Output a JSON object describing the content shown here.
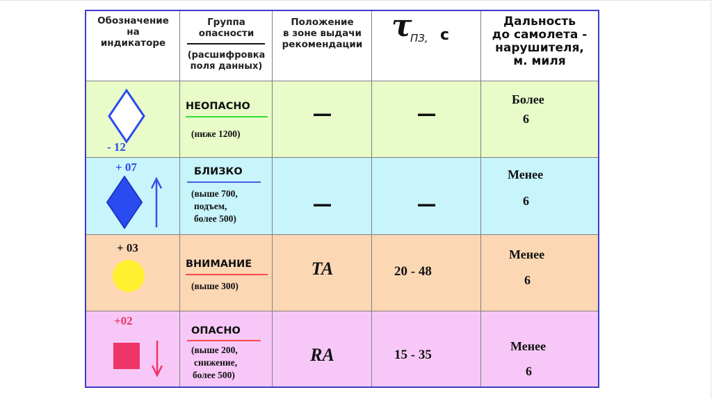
{
  "colors": {
    "border": "#3c3ccc",
    "row_not_dangerous": "#e8fbc8",
    "row_close": "#c8f4fb",
    "row_attention": "#fcd7b4",
    "row_danger": "#f7c8f7",
    "green_line": "#33dd33",
    "blue_line": "#4a5de0",
    "red_line": "#ff4a4a",
    "yellow_circle": "#ffef2e",
    "blue_symbol": "#2a4bef",
    "red_square": "#ef3568",
    "blue_arrow": "#3b4fe0"
  },
  "headers": {
    "indicator": [
      "Обозначение",
      "на",
      "индикаторе"
    ],
    "group": [
      "Группа",
      "опасности"
    ],
    "group_sub": [
      "(расшифровка",
      "поля данных)"
    ],
    "zone": [
      "Положение",
      "в зоне выдачи",
      "рекомендации"
    ],
    "tau_symbol": "τ",
    "tau_sub": "ПЗ,",
    "tau_unit": "с",
    "distance": [
      "Дальность",
      "до самолета -",
      "нарушителя,",
      "м. миля"
    ]
  },
  "rows": [
    {
      "altitude": "- 12",
      "altitude_color": "#2a4bef",
      "symbol": "hollow-diamond-icon",
      "group": "НЕОПАСНО",
      "group_sub": [
        "(ниже 1200)"
      ],
      "zone": "—",
      "tau": "—",
      "distance": [
        "Более",
        "6"
      ]
    },
    {
      "altitude": "+ 07",
      "altitude_color": "#2a4bef",
      "symbol": "filled-diamond-icon",
      "arrow": "arrow-up-icon",
      "group": "БЛИЗКО",
      "group_sub": [
        "(выше 700,",
        "подъем,",
        "более 500)"
      ],
      "zone": "—",
      "tau": "—",
      "distance": [
        "Менее",
        "6"
      ]
    },
    {
      "altitude": "+ 03",
      "altitude_color": "#111111",
      "symbol": "filled-circle-icon",
      "group": "ВНИМАНИЕ",
      "group_sub": [
        "(выше 300)"
      ],
      "zone": "TA",
      "tau": "20 - 48",
      "distance": [
        "Менее",
        "6"
      ]
    },
    {
      "altitude": "+02",
      "altitude_color": "#ef3568",
      "symbol": "filled-square-icon",
      "arrow": "arrow-down-icon",
      "group": "ОПАСНО",
      "group_sub": [
        "(выше 200,",
        "снижение,",
        "более 500)"
      ],
      "zone": "RA",
      "tau": "15 - 35",
      "distance": [
        "Менее",
        "6"
      ]
    }
  ]
}
